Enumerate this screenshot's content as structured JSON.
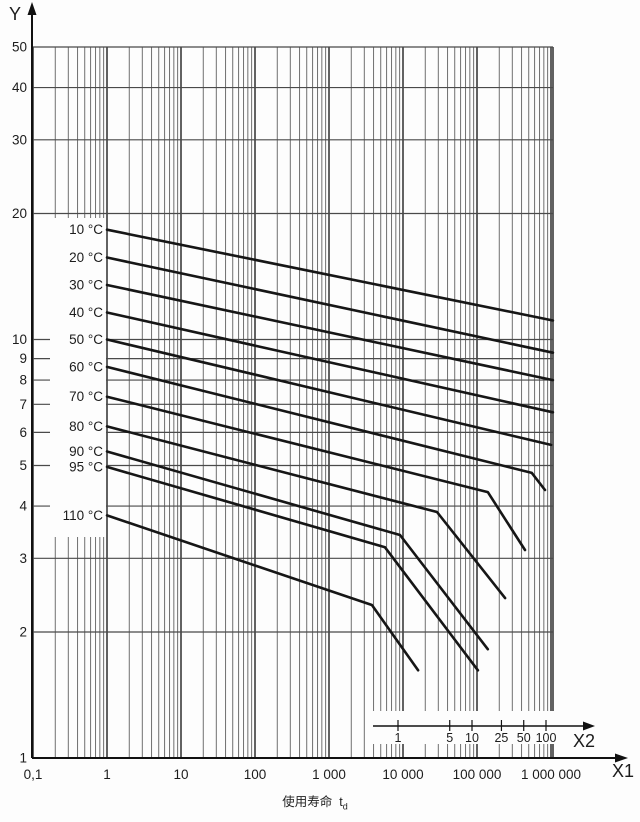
{
  "chart_data": {
    "type": "line",
    "scale": "log-log",
    "title": "",
    "grid": {
      "on": true,
      "x_minor_multiples": [
        2,
        3,
        4,
        5,
        6,
        7,
        8,
        9
      ]
    },
    "colors": {
      "curve": "#161616",
      "grid_minor": "#6f6f6f",
      "grid_major": "#2f2f2f",
      "grid_horizontal": "#4a4a4a",
      "axis": "#111111",
      "text": "#1c1c1c",
      "background": "#fdfdfd"
    },
    "y_axis": {
      "label": "Y",
      "range": [
        1,
        50
      ],
      "ticks": [
        {
          "v": 1,
          "label": "1"
        },
        {
          "v": 2,
          "label": "2"
        },
        {
          "v": 3,
          "label": "3"
        },
        {
          "v": 4,
          "label": "4"
        },
        {
          "v": 5,
          "label": "5"
        },
        {
          "v": 6,
          "label": "6"
        },
        {
          "v": 7,
          "label": "7"
        },
        {
          "v": 8,
          "label": "8"
        },
        {
          "v": 9,
          "label": "9"
        },
        {
          "v": 10,
          "label": "10"
        },
        {
          "v": 20,
          "label": "20"
        },
        {
          "v": 30,
          "label": "30"
        },
        {
          "v": 40,
          "label": "40"
        },
        {
          "v": 50,
          "label": "50"
        }
      ]
    },
    "x1_axis": {
      "label": "X1",
      "range": [
        0.1,
        1000000
      ],
      "ticks": [
        {
          "v": 0.1,
          "label": "0,1"
        },
        {
          "v": 1,
          "label": "1"
        },
        {
          "v": 10,
          "label": "10"
        },
        {
          "v": 100,
          "label": "100"
        },
        {
          "v": 1000,
          "label": "1 000"
        },
        {
          "v": 10000,
          "label": "10 000"
        },
        {
          "v": 100000,
          "label": "100 000"
        },
        {
          "v": 1000000,
          "label": "1 000 000"
        }
      ],
      "caption": "使用寿命",
      "caption_symbol": "t",
      "caption_subscript": "d"
    },
    "x2_axis": {
      "label": "X2",
      "range": [
        1,
        100
      ],
      "ticks": [
        {
          "v": 1,
          "label": "1"
        },
        {
          "v": 5,
          "label": "5"
        },
        {
          "v": 10,
          "label": "10"
        },
        {
          "v": 25,
          "label": "25"
        },
        {
          "v": 50,
          "label": "50"
        },
        {
          "v": 100,
          "label": "100"
        }
      ]
    },
    "series": [
      {
        "name": "10 °C",
        "points": [
          [
            1,
            18.3
          ],
          [
            1060000,
            11.1
          ]
        ]
      },
      {
        "name": "20 °C",
        "points": [
          [
            1,
            15.7
          ],
          [
            1060000,
            9.3
          ]
        ]
      },
      {
        "name": "30 °C",
        "points": [
          [
            1,
            13.5
          ],
          [
            1060000,
            8.0
          ]
        ]
      },
      {
        "name": "40 °C",
        "points": [
          [
            1,
            11.6
          ],
          [
            1060000,
            6.7
          ]
        ]
      },
      {
        "name": "50 °C",
        "points": [
          [
            1,
            10.0
          ],
          [
            1000000,
            5.6
          ]
        ]
      },
      {
        "name": "60 °C",
        "points": [
          [
            1,
            8.6
          ],
          [
            550000,
            4.8
          ],
          [
            830000,
            4.37
          ]
        ]
      },
      {
        "name": "70 °C",
        "points": [
          [
            1,
            7.3
          ],
          [
            140000,
            4.32
          ],
          [
            445000,
            3.14
          ]
        ]
      },
      {
        "name": "80 °C",
        "points": [
          [
            1,
            6.2
          ],
          [
            28800,
            3.87
          ],
          [
            240000,
            2.41
          ]
        ]
      },
      {
        "name": "90 °C",
        "points": [
          [
            1,
            5.4
          ],
          [
            9100,
            3.41
          ],
          [
            140000,
            1.82
          ]
        ]
      },
      {
        "name": "95 °C",
        "points": [
          [
            1,
            4.96
          ],
          [
            5700,
            3.19
          ],
          [
            103000,
            1.62
          ]
        ]
      },
      {
        "name": "110 °C",
        "points": [
          [
            1,
            3.8
          ],
          [
            3800,
            2.32
          ],
          [
            16000,
            1.62
          ]
        ]
      }
    ]
  }
}
